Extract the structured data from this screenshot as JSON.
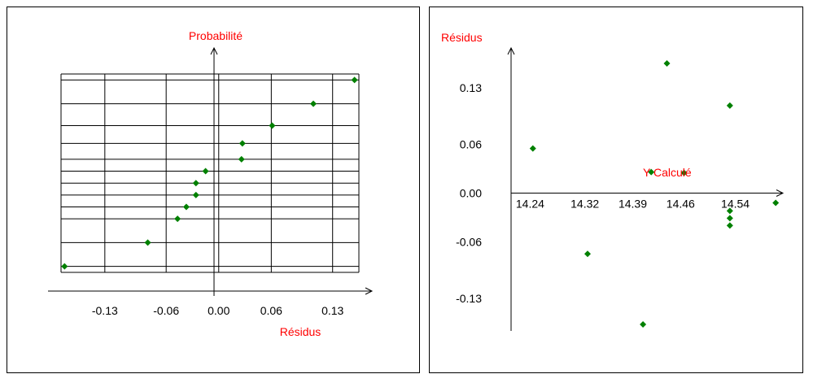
{
  "chart_data": [
    {
      "type": "scatter",
      "xlabel": "Résidus",
      "ylabel": "Probabilité",
      "x_ticks": [
        "-0.13",
        "-0.06",
        "0.00",
        "0.06",
        "0.13"
      ],
      "x_tick_values": [
        -0.13,
        -0.06,
        0.0,
        0.06,
        0.13
      ],
      "xlim": [
        -0.18,
        0.16
      ],
      "ylim": [
        0,
        1
      ],
      "grid": true,
      "points": [
        {
          "x": -0.176,
          "y": 0.03
        },
        {
          "x": -0.081,
          "y": 0.15
        },
        {
          "x": -0.047,
          "y": 0.27
        },
        {
          "x": -0.037,
          "y": 0.33
        },
        {
          "x": -0.026,
          "y": 0.39
        },
        {
          "x": -0.026,
          "y": 0.45
        },
        {
          "x": -0.015,
          "y": 0.51
        },
        {
          "x": 0.026,
          "y": 0.57
        },
        {
          "x": 0.027,
          "y": 0.65
        },
        {
          "x": 0.061,
          "y": 0.74
        },
        {
          "x": 0.108,
          "y": 0.85
        },
        {
          "x": 0.155,
          "y": 0.97
        }
      ]
    },
    {
      "type": "scatter",
      "xlabel": "Y Calculé",
      "ylabel": "Résidus",
      "x_ticks": [
        "14.24",
        "14.32",
        "14.39",
        "14.46",
        "14.54"
      ],
      "x_tick_values": [
        14.24,
        14.32,
        14.39,
        14.46,
        14.54
      ],
      "y_ticks": [
        "0.13",
        "0.06",
        "0.00",
        "-0.06",
        "-0.13"
      ],
      "y_tick_values": [
        0.13,
        0.06,
        0.0,
        -0.06,
        -0.13
      ],
      "xlim": [
        14.23,
        14.6
      ],
      "ylim": [
        -0.17,
        0.17
      ],
      "points": [
        {
          "x": 14.244,
          "y": 0.055
        },
        {
          "x": 14.324,
          "y": -0.075
        },
        {
          "x": 14.405,
          "y": -0.162
        },
        {
          "x": 14.417,
          "y": 0.026
        },
        {
          "x": 14.44,
          "y": 0.16
        },
        {
          "x": 14.465,
          "y": 0.025
        },
        {
          "x": 14.532,
          "y": 0.108
        },
        {
          "x": 14.532,
          "y": -0.022
        },
        {
          "x": 14.532,
          "y": -0.031
        },
        {
          "x": 14.532,
          "y": -0.04
        },
        {
          "x": 14.599,
          "y": -0.012
        }
      ]
    }
  ],
  "colors": {
    "point": "#008000",
    "label": "#ff0000",
    "axis": "#000000",
    "grid": "#000000"
  }
}
